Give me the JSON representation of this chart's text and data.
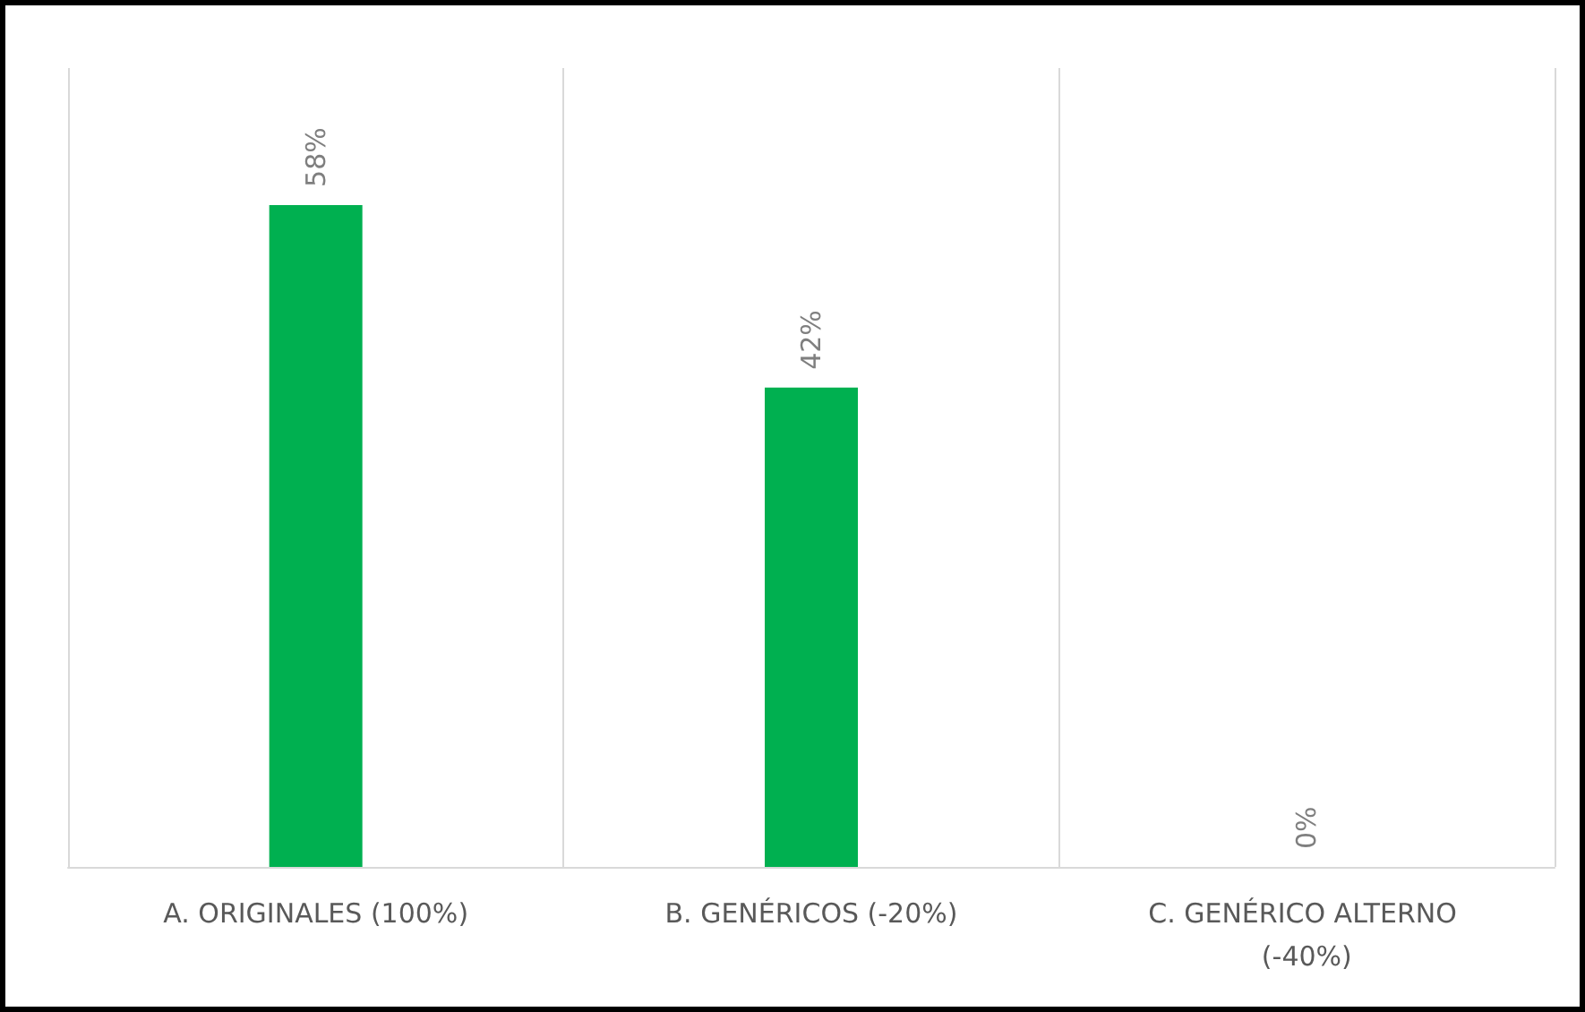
{
  "chart_data": {
    "type": "bar",
    "categories": [
      "A. ORIGINALES (100%)",
      "B. GENÉRICOS (-20%)",
      "C. GENÉRICO ALTERNO (-40%)"
    ],
    "values": [
      58,
      42,
      0
    ],
    "value_labels": [
      "58%",
      "42%",
      "0%"
    ],
    "color": "#00b050",
    "ylim": [
      0,
      70
    ],
    "grid": "x",
    "tick_labels": "x"
  }
}
